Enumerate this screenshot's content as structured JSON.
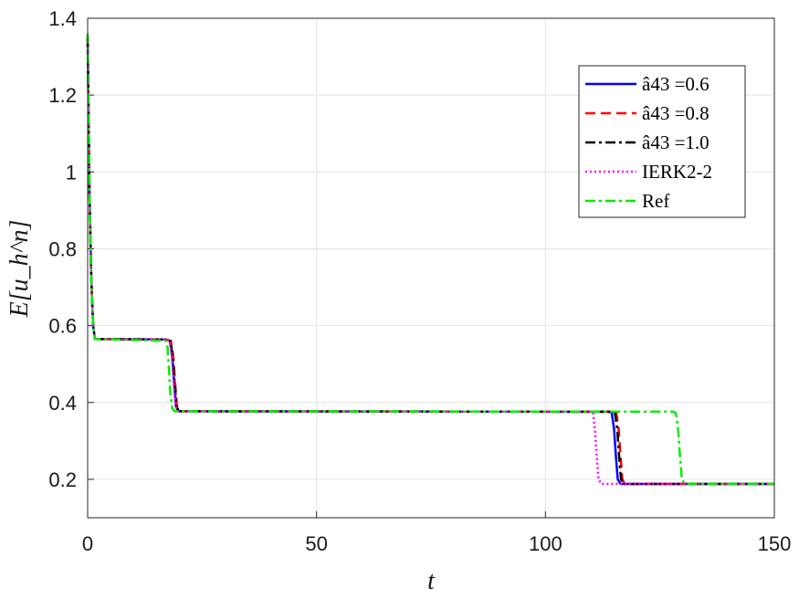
{
  "chart_data": {
    "type": "line",
    "xlabel": "t",
    "ylabel": "E[u_h^n]",
    "xlim": [
      0,
      150
    ],
    "ylim": [
      0.1,
      1.4
    ],
    "xticks": [
      0,
      50,
      100,
      150
    ],
    "xtick_labels": [
      "0",
      "50",
      "100",
      "150"
    ],
    "yticks": [
      0.2,
      0.4,
      0.6,
      0.8,
      1.0,
      1.2,
      1.4
    ],
    "ytick_labels": [
      "0.2",
      "0.4",
      "0.6",
      "0.8",
      "1",
      "1.2",
      "1.4"
    ],
    "grid": true,
    "legend_position": "top-right",
    "series": [
      {
        "name": "â43 =0.6",
        "color": "#0000ff",
        "style": "solid",
        "x": [
          0,
          0.4,
          0.8,
          1.2,
          1.6,
          17,
          18,
          18.5,
          18.9,
          19.3,
          19.8,
          114,
          114.5,
          115,
          115.4,
          115.8,
          116.4,
          150
        ],
        "y": [
          1.35,
          0.95,
          0.72,
          0.6,
          0.565,
          0.564,
          0.56,
          0.52,
          0.45,
          0.39,
          0.377,
          0.376,
          0.372,
          0.33,
          0.26,
          0.2,
          0.188,
          0.188
        ]
      },
      {
        "name": "â43 =0.8",
        "color": "#ff0000",
        "style": "dashed",
        "x": [
          0,
          0.4,
          0.8,
          1.2,
          1.6,
          17.2,
          18.2,
          18.7,
          19.1,
          19.5,
          20,
          115,
          115.5,
          116,
          116.4,
          116.8,
          117.3,
          150
        ],
        "y": [
          1.35,
          0.95,
          0.72,
          0.6,
          0.565,
          0.564,
          0.56,
          0.52,
          0.45,
          0.39,
          0.377,
          0.376,
          0.372,
          0.33,
          0.26,
          0.2,
          0.188,
          0.188
        ]
      },
      {
        "name": "â43 =1.0",
        "color": "#000000",
        "style": "dashdot",
        "x": [
          0,
          0.4,
          0.8,
          1.2,
          1.6,
          17.1,
          18.1,
          18.6,
          19,
          19.4,
          19.9,
          114.7,
          115.2,
          115.7,
          116.1,
          116.5,
          117,
          150
        ],
        "y": [
          1.35,
          0.95,
          0.72,
          0.6,
          0.565,
          0.564,
          0.56,
          0.52,
          0.45,
          0.39,
          0.377,
          0.376,
          0.372,
          0.33,
          0.26,
          0.2,
          0.188,
          0.188
        ]
      },
      {
        "name": "IERK2-2",
        "color": "#ff00ff",
        "style": "dotted",
        "x": [
          0,
          0.4,
          0.8,
          1.2,
          1.6,
          16.9,
          17.9,
          18.4,
          18.8,
          19.2,
          19.7,
          110,
          110.4,
          110.8,
          111.2,
          111.6,
          112.2,
          150
        ],
        "y": [
          1.35,
          0.95,
          0.72,
          0.6,
          0.565,
          0.564,
          0.56,
          0.52,
          0.45,
          0.39,
          0.377,
          0.376,
          0.372,
          0.33,
          0.26,
          0.2,
          0.188,
          0.188
        ]
      },
      {
        "name": "Ref",
        "color": "#00ee00",
        "style": "dashdot",
        "x": [
          0,
          0.4,
          0.8,
          1.2,
          1.6,
          17.2,
          17.5,
          17.8,
          18.1,
          18.5,
          19,
          128,
          128.5,
          129,
          129.4,
          129.8,
          130.4,
          150
        ],
        "y": [
          1.36,
          0.95,
          0.72,
          0.6,
          0.565,
          0.56,
          0.54,
          0.48,
          0.42,
          0.385,
          0.377,
          0.376,
          0.372,
          0.33,
          0.26,
          0.2,
          0.188,
          0.188
        ]
      }
    ]
  }
}
